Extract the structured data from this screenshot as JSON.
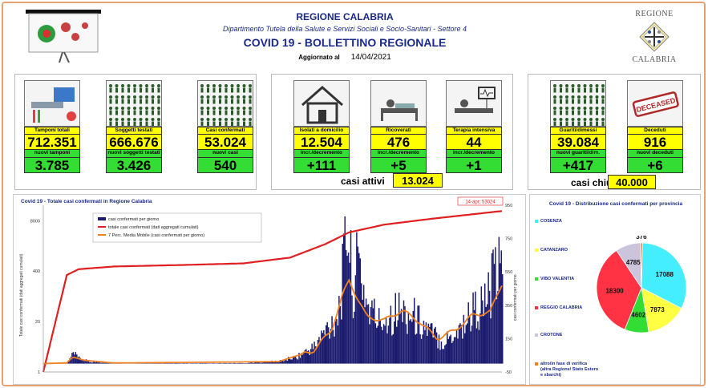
{
  "header": {
    "region": "REGIONE CALABRIA",
    "department": "Dipartimento Tutela della Salute e Servizi Sociali e Socio-Sanitari - Settore 4",
    "title": "COVID 19 - BOLLETTINO REGIONALE",
    "updated_label": "Aggiornato al",
    "updated_date": "14/04/2021",
    "crest_top": "REGIONE",
    "crest_bottom": "CALABRIA"
  },
  "stats": {
    "tamponi": {
      "label": "Tamponi totali",
      "value": "712.351",
      "new_label": "nuovi tamponi",
      "new_value": "3.785"
    },
    "soggetti": {
      "label": "Soggetti testati",
      "value": "666.676",
      "new_label": "nuovi soggetti testati",
      "new_value": "3.426"
    },
    "casi": {
      "label": "Casi confermati",
      "value": "53.024",
      "new_label": "nuovi casi",
      "new_value": "540"
    },
    "isolati": {
      "label": "Isolati a domicilio",
      "value": "12.504",
      "new_label": "incr./decremento",
      "new_value": "+111"
    },
    "ricoverati": {
      "label": "Ricoverati",
      "value": "476",
      "new_label": "incr./decremento",
      "new_value": "+5"
    },
    "terapia": {
      "label": "Terapia intensiva",
      "value": "44",
      "new_label": "incr./decremento",
      "new_value": "+1"
    },
    "guariti": {
      "label": "Guariti/dimessi",
      "value": "39.084",
      "new_label": "nuovi guariti/dim.",
      "new_value": "+417"
    },
    "deceduti": {
      "label": "Deceduti",
      "value": "916",
      "new_label": "nuovi deceduti",
      "new_value": "+6",
      "stamp": "DECEASED"
    },
    "attivi_label": "casi attivi",
    "attivi_value": "13.024",
    "chiusi_label": "casi chiusi",
    "chiusi_value": "40.000"
  },
  "colors": {
    "yellow": "#ffff00",
    "green": "#33dd33",
    "navy": "#1a1a6e",
    "red": "#e02020",
    "orange": "#f08020"
  },
  "chart_data": [
    {
      "type": "bar+line",
      "title": "Covid 19 - Totale casi confermati in Regione Calabria",
      "legend": [
        "casi confermati per giorno",
        "totale casi confermati (dati aggregati cumulati)",
        "7 Perc. Media Mobile (casi confermati per giorno)"
      ],
      "ylabel_left": "Totale casi confermati (dati aggregati cumulati)",
      "ylabel_right": "casi confermati per giorno",
      "y_left_ticks": [
        "1",
        "20",
        "400",
        "8000"
      ],
      "y_right_ticks": [
        "-50",
        "150",
        "350",
        "550",
        "750",
        "950"
      ],
      "ylim_right": [
        -50,
        950
      ],
      "annotation": "14-apr; 53024",
      "daily_cases_keypoints": [
        [
          0,
          0
        ],
        [
          20,
          5
        ],
        [
          25,
          60
        ],
        [
          30,
          30
        ],
        [
          40,
          10
        ],
        [
          60,
          4
        ],
        [
          120,
          2
        ],
        [
          170,
          3
        ],
        [
          200,
          15
        ],
        [
          215,
          40
        ],
        [
          230,
          100
        ],
        [
          240,
          200
        ],
        [
          250,
          300
        ],
        [
          255,
          550
        ],
        [
          258,
          900
        ],
        [
          262,
          450
        ],
        [
          268,
          600
        ],
        [
          275,
          350
        ],
        [
          285,
          250
        ],
        [
          300,
          320
        ],
        [
          315,
          280
        ],
        [
          330,
          180
        ],
        [
          340,
          130
        ],
        [
          355,
          220
        ],
        [
          365,
          320
        ],
        [
          375,
          350
        ],
        [
          385,
          540
        ],
        [
          390,
          520
        ]
      ],
      "moving_avg_keypoints": [
        [
          0,
          0
        ],
        [
          20,
          5
        ],
        [
          25,
          40
        ],
        [
          35,
          20
        ],
        [
          60,
          4
        ],
        [
          200,
          12
        ],
        [
          230,
          80
        ],
        [
          245,
          200
        ],
        [
          255,
          420
        ],
        [
          260,
          500
        ],
        [
          268,
          380
        ],
        [
          275,
          280
        ],
        [
          290,
          260
        ],
        [
          305,
          320
        ],
        [
          320,
          250
        ],
        [
          335,
          150
        ],
        [
          350,
          200
        ],
        [
          365,
          290
        ],
        [
          380,
          310
        ],
        [
          390,
          480
        ]
      ],
      "cumulative_log_keypoints": [
        [
          0,
          0
        ],
        [
          20,
          2.5
        ],
        [
          30,
          2.65
        ],
        [
          60,
          2.72
        ],
        [
          120,
          2.76
        ],
        [
          170,
          2.8
        ],
        [
          210,
          2.95
        ],
        [
          240,
          3.3
        ],
        [
          260,
          3.6
        ],
        [
          290,
          3.8
        ],
        [
          330,
          3.95
        ],
        [
          390,
          4.15
        ]
      ]
    },
    {
      "type": "pie",
      "title": "Covid 19 - Distribuzione casi confermati per provincia",
      "series": [
        {
          "name": "COSENZA",
          "value": 17088,
          "color": "#44eeff"
        },
        {
          "name": "CATANZARO",
          "value": 7873,
          "color": "#ffff44"
        },
        {
          "name": "VIBO VALENTIA",
          "value": 4602,
          "color": "#33dd33"
        },
        {
          "name": "REGGIO CALABRIA",
          "value": 18300,
          "color": "#ff3344"
        },
        {
          "name": "CROTONE",
          "value": 4785,
          "color": "#ccc4dd"
        },
        {
          "name": "altro/in fase di verifica (altra Regione/ Stato Estero e sbarchi)",
          "value": 376,
          "color": "#f08020"
        }
      ]
    }
  ]
}
